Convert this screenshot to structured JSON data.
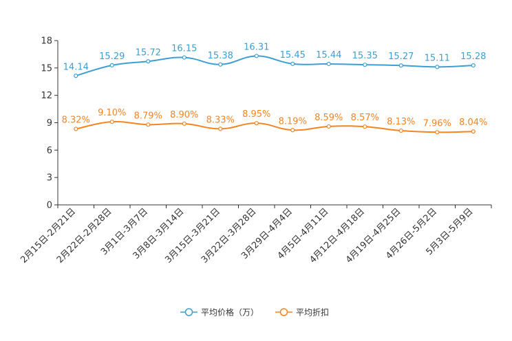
{
  "chart_data": {
    "type": "line",
    "categories": [
      "2月15日-2月21日",
      "2月22日-2月28日",
      "3月1日-3月7日",
      "3月8日-3月14日",
      "3月15日-3月21日",
      "3月22日-3月28日",
      "3月29日-4月4日",
      "4月5日-4月11日",
      "4月12日-4月18日",
      "4月19日-4月25日",
      "4月26日-5月2日",
      "5月3日-5月9日"
    ],
    "ylim": [
      0,
      18
    ],
    "yticks": [
      0,
      3,
      6,
      9,
      12,
      15,
      18
    ],
    "series": [
      {
        "name": "平均价格（万）",
        "color": "#3a9fd2",
        "values": [
          14.14,
          15.29,
          15.72,
          16.15,
          15.38,
          16.31,
          15.45,
          15.44,
          15.35,
          15.27,
          15.11,
          15.28
        ],
        "labels": [
          "14.14",
          "15.29",
          "15.72",
          "16.15",
          "15.38",
          "16.31",
          "15.45",
          "15.44",
          "15.35",
          "15.27",
          "15.11",
          "15.28"
        ]
      },
      {
        "name": "平均折扣",
        "color": "#f5841f",
        "values": [
          8.32,
          9.1,
          8.79,
          8.9,
          8.33,
          8.95,
          8.19,
          8.59,
          8.57,
          8.13,
          7.96,
          8.04
        ],
        "labels": [
          "8.32%",
          "9.10%",
          "8.79%",
          "8.90%",
          "8.33%",
          "8.95%",
          "8.19%",
          "8.59%",
          "8.57%",
          "8.13%",
          "7.96%",
          "8.04%"
        ]
      }
    ],
    "legend_position": "bottom-center",
    "grid": false
  }
}
